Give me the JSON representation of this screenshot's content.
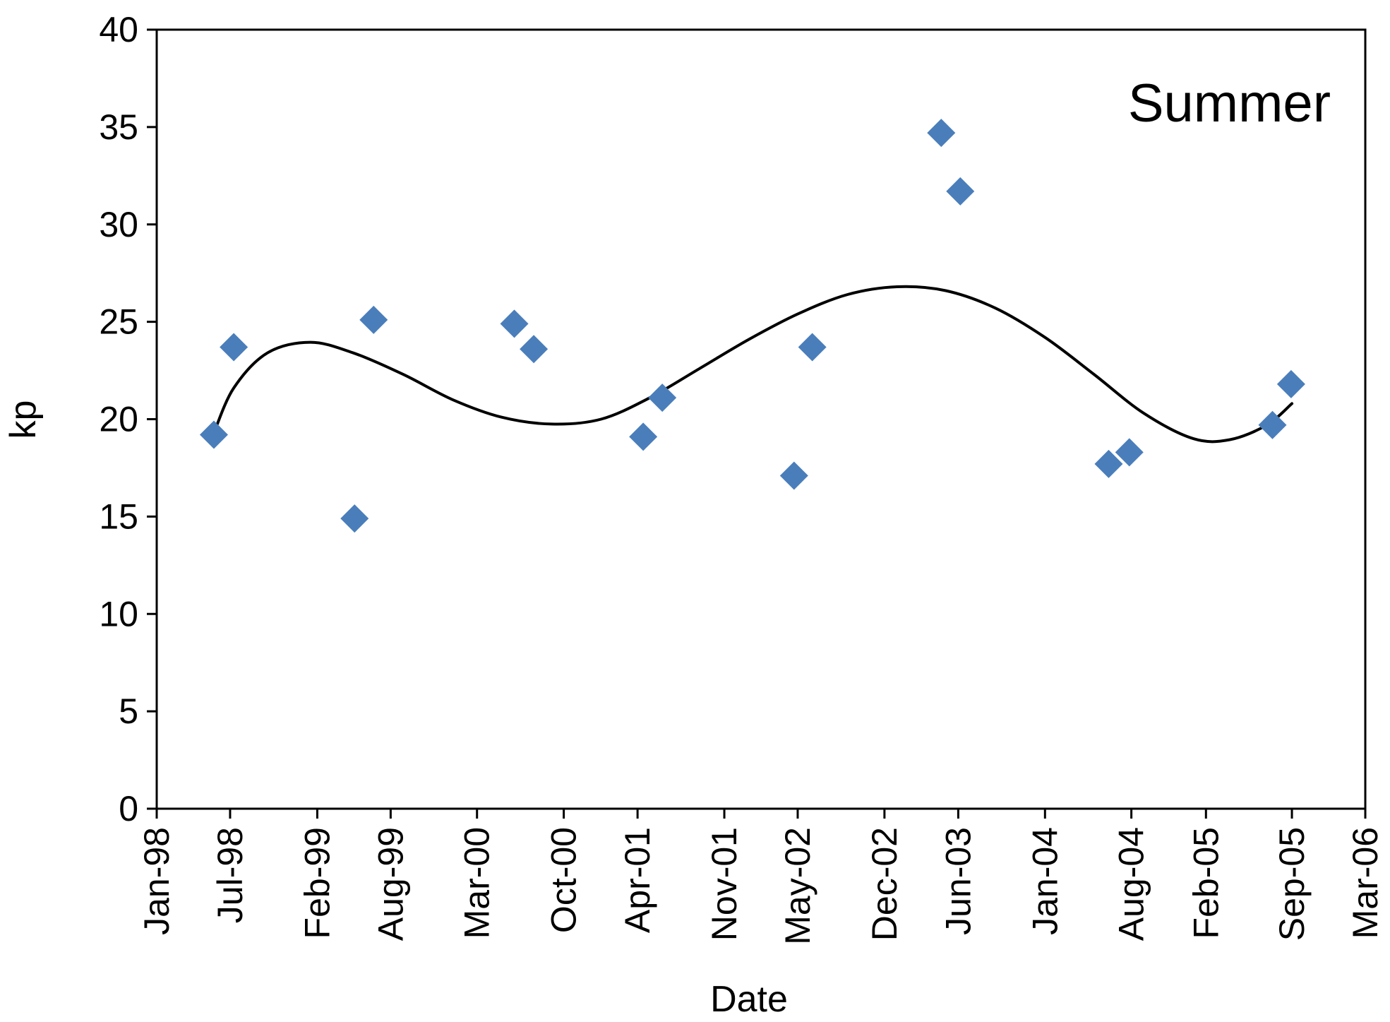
{
  "chart_data": {
    "type": "scatter",
    "xlabel": "Date",
    "ylabel": "kp",
    "annotation": "Summer",
    "x_axis": {
      "kind": "date",
      "range": [
        "1998-01-01",
        "2006-03-01"
      ],
      "ticks": [
        {
          "date": "1998-01-01",
          "label": "Jan-98"
        },
        {
          "date": "1998-07-01",
          "label": "Jul-98"
        },
        {
          "date": "1999-02-01",
          "label": "Feb-99"
        },
        {
          "date": "1999-08-01",
          "label": "Aug-99"
        },
        {
          "date": "2000-03-01",
          "label": "Mar-00"
        },
        {
          "date": "2000-10-01",
          "label": "Oct-00"
        },
        {
          "date": "2001-04-01",
          "label": "Apr-01"
        },
        {
          "date": "2001-11-01",
          "label": "Nov-01"
        },
        {
          "date": "2002-05-01",
          "label": "May-02"
        },
        {
          "date": "2002-12-01",
          "label": "Dec-02"
        },
        {
          "date": "2003-06-01",
          "label": "Jun-03"
        },
        {
          "date": "2004-01-01",
          "label": "Jan-04"
        },
        {
          "date": "2004-08-01",
          "label": "Aug-04"
        },
        {
          "date": "2005-02-01",
          "label": "Feb-05"
        },
        {
          "date": "2005-09-01",
          "label": "Sep-05"
        },
        {
          "date": "2006-03-01",
          "label": "Mar-06"
        }
      ]
    },
    "y_axis": {
      "range": [
        0,
        40
      ],
      "ticks": [
        0,
        5,
        10,
        15,
        20,
        25,
        30,
        35,
        40
      ]
    },
    "grid": false,
    "legend": "none",
    "series": [
      {
        "kind": "points",
        "color": "#4A7EBB",
        "marker": "diamond",
        "points": [
          {
            "date": "1998-05-22",
            "y": 19.2
          },
          {
            "date": "1998-07-10",
            "y": 23.7
          },
          {
            "date": "1999-05-04",
            "y": 14.9
          },
          {
            "date": "1999-06-20",
            "y": 25.1
          },
          {
            "date": "2000-06-01",
            "y": 24.9
          },
          {
            "date": "2000-07-19",
            "y": 23.6
          },
          {
            "date": "2001-04-15",
            "y": 19.1
          },
          {
            "date": "2001-06-01",
            "y": 21.1
          },
          {
            "date": "2002-04-22",
            "y": 17.1
          },
          {
            "date": "2002-06-06",
            "y": 23.7
          },
          {
            "date": "2003-04-20",
            "y": 34.7
          },
          {
            "date": "2003-06-06",
            "y": 31.7
          },
          {
            "date": "2004-06-06",
            "y": 17.7
          },
          {
            "date": "2004-07-27",
            "y": 18.3
          },
          {
            "date": "2005-07-15",
            "y": 19.7
          },
          {
            "date": "2005-08-30",
            "y": 21.8
          }
        ]
      },
      {
        "kind": "trendline",
        "color": "#000000",
        "points": [
          {
            "date": "1998-05-22",
            "y": 19.3
          },
          {
            "date": "1998-07-10",
            "y": 21.6
          },
          {
            "date": "1998-10-01",
            "y": 23.4
          },
          {
            "date": "1999-01-15",
            "y": 23.95
          },
          {
            "date": "1999-05-01",
            "y": 23.4
          },
          {
            "date": "1999-09-01",
            "y": 22.3
          },
          {
            "date": "2000-01-01",
            "y": 21.0
          },
          {
            "date": "2000-05-01",
            "y": 20.1
          },
          {
            "date": "2000-09-01",
            "y": 19.75
          },
          {
            "date": "2001-01-01",
            "y": 20.0
          },
          {
            "date": "2001-05-01",
            "y": 21.1
          },
          {
            "date": "2001-09-01",
            "y": 22.6
          },
          {
            "date": "2002-01-01",
            "y": 24.1
          },
          {
            "date": "2002-05-01",
            "y": 25.4
          },
          {
            "date": "2002-09-01",
            "y": 26.4
          },
          {
            "date": "2003-01-01",
            "y": 26.8
          },
          {
            "date": "2003-05-01",
            "y": 26.6
          },
          {
            "date": "2003-09-01",
            "y": 25.7
          },
          {
            "date": "2004-01-01",
            "y": 24.2
          },
          {
            "date": "2004-05-01",
            "y": 22.3
          },
          {
            "date": "2004-09-01",
            "y": 20.3
          },
          {
            "date": "2005-01-01",
            "y": 19.0
          },
          {
            "date": "2005-04-01",
            "y": 18.95
          },
          {
            "date": "2005-07-01",
            "y": 19.7
          },
          {
            "date": "2005-09-01",
            "y": 20.8
          }
        ]
      }
    ]
  }
}
